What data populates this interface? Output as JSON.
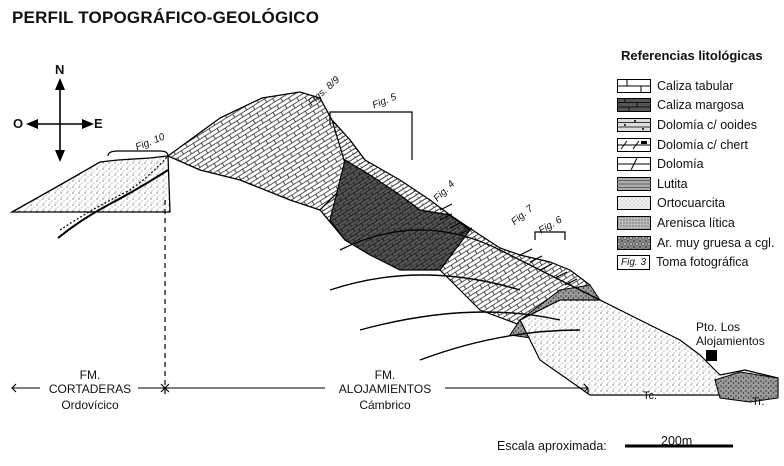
{
  "title": "PERFIL TOPOGRÁFICO-GEOLÓGICO",
  "compass": {
    "north": "N",
    "west": "O",
    "east": "E"
  },
  "figure_refs": {
    "fig10": "Fig. 10",
    "figs89": "Figs. 8/9",
    "fig5": "Fig. 5",
    "fig4": "Fig. 4",
    "fig7": "Fig. 7",
    "fig6": "Fig. 6"
  },
  "legend": {
    "title": "Referencias litológicas",
    "items": [
      {
        "label": "Caliza tabular",
        "pattern": "caliza-tabular"
      },
      {
        "label": "Caliza margosa",
        "pattern": "caliza-margosa"
      },
      {
        "label": "Dolomía c/ ooides",
        "pattern": "dolomia-ooides"
      },
      {
        "label": "Dolomía c/ chert",
        "pattern": "dolomia-chert"
      },
      {
        "label": "Dolomía",
        "pattern": "dolomia"
      },
      {
        "label": "Lutita",
        "pattern": "lutita"
      },
      {
        "label": "Ortocuarcita",
        "pattern": "ortocuarcita"
      },
      {
        "label": "Arenisca lítica",
        "pattern": "arenisca-litica"
      },
      {
        "label": "Ar. muy gruesa a cgl.",
        "pattern": "conglomerado"
      },
      {
        "label": "Toma fotográfica",
        "pattern": "fig-ref",
        "ref": "Fig. 3"
      }
    ]
  },
  "formations": [
    {
      "name": "FM.\nCORTADERAS",
      "age": "Ordovícico"
    },
    {
      "name": "FM.\nALOJAMIENTOS",
      "age": "Cámbrico"
    }
  ],
  "location": {
    "label": "Pto. Los\nAlojamientos"
  },
  "side_labels": {
    "tc": "Tc.",
    "tr": "Tr."
  },
  "scale": {
    "label": "Escala aproximada:",
    "value": "200m"
  },
  "colors": {
    "ink": "#111111",
    "paper": "#ffffff",
    "gray": "#8a8a8a"
  }
}
